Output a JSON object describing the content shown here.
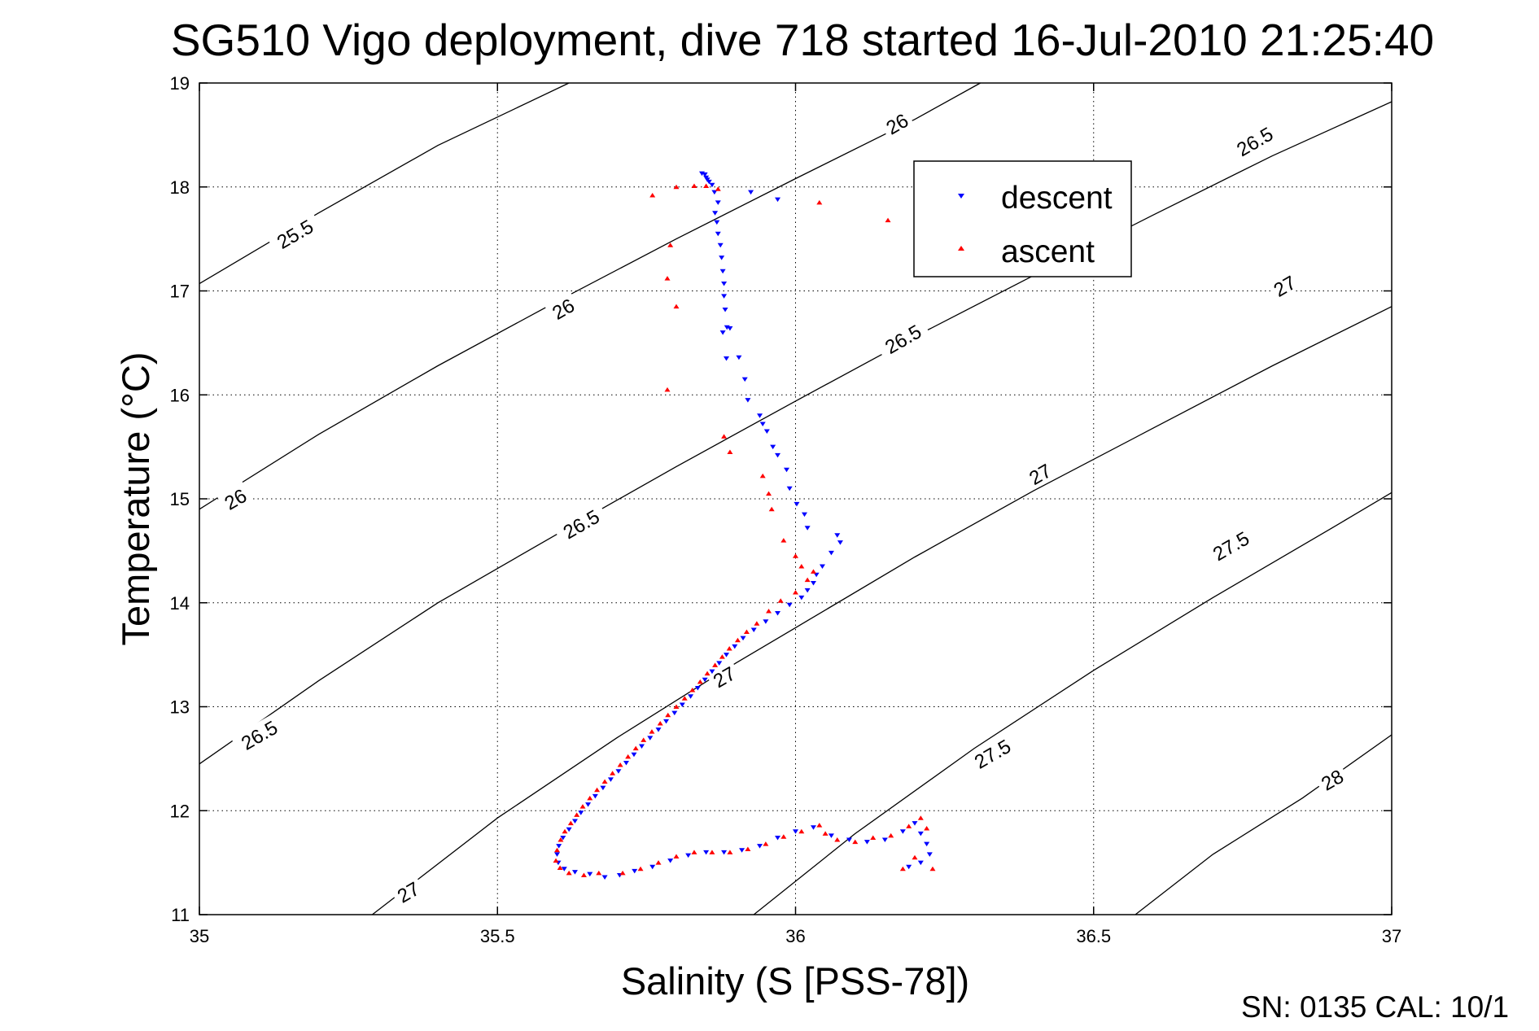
{
  "chart_data": {
    "type": "scatter",
    "title": "SG510 Vigo deployment, dive 718 started 16-Jul-2010 21:25:40",
    "xlabel": "Salinity (S [PSS-78])",
    "ylabel": "Temperature (°C)",
    "xlim": [
      35,
      37
    ],
    "ylim": [
      11,
      19
    ],
    "xticks": [
      "35",
      "35.5",
      "36",
      "36.5",
      "37"
    ],
    "yticks": [
      "11",
      "12",
      "13",
      "14",
      "15",
      "16",
      "17",
      "18",
      "19"
    ],
    "grid": true,
    "legend_position": "top-right",
    "footer": "SN: 0135  CAL: 10/1",
    "contour_labels": [
      {
        "text": "25.5",
        "s": 35.16,
        "t": 17.55
      },
      {
        "text": "26",
        "s": 35.61,
        "t": 16.83
      },
      {
        "text": "26",
        "s": 35.06,
        "t": 15.0
      },
      {
        "text": "26",
        "s": 36.17,
        "t": 18.61
      },
      {
        "text": "26.5",
        "s": 36.18,
        "t": 16.54
      },
      {
        "text": "26.5",
        "s": 35.64,
        "t": 14.76
      },
      {
        "text": "26.5",
        "s": 35.1,
        "t": 12.73
      },
      {
        "text": "26.5",
        "s": 36.77,
        "t": 18.44
      },
      {
        "text": "27",
        "s": 36.82,
        "t": 17.05
      },
      {
        "text": "27",
        "s": 36.41,
        "t": 15.24
      },
      {
        "text": "27",
        "s": 35.88,
        "t": 13.29
      },
      {
        "text": "27",
        "s": 35.35,
        "t": 11.22
      },
      {
        "text": "27.5",
        "s": 36.73,
        "t": 14.55
      },
      {
        "text": "27.5",
        "s": 36.33,
        "t": 12.55
      },
      {
        "text": "28",
        "s": 36.9,
        "t": 12.3
      }
    ],
    "isopycnals": [
      {
        "sigma": 25.5,
        "points": [
          [
            35.0,
            17.07
          ],
          [
            35.2,
            17.75
          ],
          [
            35.4,
            18.4
          ],
          [
            35.62,
            19.0
          ]
        ]
      },
      {
        "sigma": 26.0,
        "points": [
          [
            35.0,
            14.9
          ],
          [
            35.2,
            15.62
          ],
          [
            35.4,
            16.28
          ],
          [
            35.6,
            16.9
          ],
          [
            35.8,
            17.5
          ],
          [
            36.0,
            18.08
          ],
          [
            36.2,
            18.65
          ],
          [
            36.31,
            19.0
          ]
        ]
      },
      {
        "sigma": 26.5,
        "points": [
          [
            35.0,
            12.45
          ],
          [
            35.2,
            13.25
          ],
          [
            35.4,
            14.0
          ],
          [
            35.6,
            14.66
          ],
          [
            35.8,
            15.31
          ],
          [
            36.0,
            15.94
          ],
          [
            36.2,
            16.56
          ],
          [
            36.4,
            17.15
          ],
          [
            36.6,
            17.73
          ],
          [
            36.8,
            18.3
          ],
          [
            37.0,
            18.82
          ]
        ]
      },
      {
        "sigma": 27.0,
        "points": [
          [
            35.29,
            11.0
          ],
          [
            35.5,
            11.93
          ],
          [
            35.7,
            12.7
          ],
          [
            35.9,
            13.42
          ],
          [
            36.0,
            13.76
          ],
          [
            36.2,
            14.44
          ],
          [
            36.4,
            15.08
          ],
          [
            36.6,
            15.68
          ],
          [
            36.8,
            16.28
          ],
          [
            37.0,
            16.85
          ]
        ]
      },
      {
        "sigma": 27.5,
        "points": [
          [
            35.93,
            11.0
          ],
          [
            36.1,
            11.78
          ],
          [
            36.3,
            12.6
          ],
          [
            36.5,
            13.35
          ],
          [
            36.7,
            14.05
          ],
          [
            36.9,
            14.72
          ],
          [
            37.0,
            15.06
          ]
        ]
      },
      {
        "sigma": 28.0,
        "points": [
          [
            36.57,
            11.0
          ],
          [
            36.7,
            11.58
          ],
          [
            36.85,
            12.12
          ],
          [
            37.0,
            12.73
          ]
        ]
      }
    ],
    "series": [
      {
        "name": "descent",
        "color": "#0000ff",
        "marker": "triangle-down",
        "points": [
          [
            35.843,
            18.13
          ],
          [
            35.848,
            18.12
          ],
          [
            35.85,
            18.09
          ],
          [
            35.852,
            18.07
          ],
          [
            35.855,
            18.05
          ],
          [
            35.86,
            18.02
          ],
          [
            35.864,
            17.95
          ],
          [
            35.87,
            17.85
          ],
          [
            35.865,
            17.75
          ],
          [
            35.868,
            17.66
          ],
          [
            35.87,
            17.55
          ],
          [
            35.874,
            17.44
          ],
          [
            35.876,
            17.32
          ],
          [
            35.878,
            17.19
          ],
          [
            35.88,
            17.07
          ],
          [
            35.88,
            16.95
          ],
          [
            35.882,
            16.82
          ],
          [
            35.885,
            16.65
          ],
          [
            35.89,
            16.64
          ],
          [
            35.878,
            16.6
          ],
          [
            35.884,
            16.35
          ],
          [
            35.905,
            16.36
          ],
          [
            35.915,
            16.15
          ],
          [
            35.92,
            15.95
          ],
          [
            35.94,
            15.8
          ],
          [
            35.945,
            15.72
          ],
          [
            35.952,
            15.65
          ],
          [
            35.962,
            15.5
          ],
          [
            35.97,
            15.42
          ],
          [
            35.985,
            15.28
          ],
          [
            35.99,
            15.1
          ],
          [
            36.002,
            14.95
          ],
          [
            36.015,
            14.85
          ],
          [
            36.02,
            14.72
          ],
          [
            36.07,
            14.65
          ],
          [
            36.075,
            14.58
          ],
          [
            36.06,
            14.48
          ],
          [
            36.045,
            14.35
          ],
          [
            36.035,
            14.27
          ],
          [
            36.03,
            14.19
          ],
          [
            36.02,
            14.12
          ],
          [
            36.01,
            14.05
          ],
          [
            35.99,
            13.98
          ],
          [
            35.97,
            13.9
          ],
          [
            35.95,
            13.82
          ],
          [
            35.93,
            13.74
          ],
          [
            35.912,
            13.66
          ],
          [
            35.898,
            13.58
          ],
          [
            35.884,
            13.5
          ],
          [
            35.872,
            13.42
          ],
          [
            35.86,
            13.34
          ],
          [
            35.848,
            13.26
          ],
          [
            35.836,
            13.18
          ],
          [
            35.824,
            13.1
          ],
          [
            35.81,
            13.02
          ],
          [
            35.797,
            12.94
          ],
          [
            35.783,
            12.86
          ],
          [
            35.77,
            12.78
          ],
          [
            35.756,
            12.7
          ],
          [
            35.742,
            12.62
          ],
          [
            35.729,
            12.54
          ],
          [
            35.716,
            12.46
          ],
          [
            35.703,
            12.38
          ],
          [
            35.69,
            12.3
          ],
          [
            35.677,
            12.22
          ],
          [
            35.664,
            12.14
          ],
          [
            35.652,
            12.06
          ],
          [
            35.64,
            11.98
          ],
          [
            35.63,
            11.9
          ],
          [
            35.62,
            11.82
          ],
          [
            35.61,
            11.74
          ],
          [
            35.603,
            11.66
          ],
          [
            35.6,
            11.58
          ],
          [
            35.602,
            11.5
          ],
          [
            35.612,
            11.44
          ],
          [
            35.63,
            11.41
          ],
          [
            35.655,
            11.39
          ],
          [
            35.68,
            11.36
          ],
          [
            35.705,
            11.38
          ],
          [
            35.73,
            11.42
          ],
          [
            35.76,
            11.46
          ],
          [
            35.79,
            11.52
          ],
          [
            35.82,
            11.57
          ],
          [
            35.85,
            11.6
          ],
          [
            35.88,
            11.6
          ],
          [
            35.91,
            11.62
          ],
          [
            35.94,
            11.66
          ],
          [
            35.97,
            11.74
          ],
          [
            36.0,
            11.8
          ],
          [
            36.03,
            11.84
          ],
          [
            36.06,
            11.76
          ],
          [
            36.09,
            11.72
          ],
          [
            36.12,
            11.7
          ],
          [
            36.15,
            11.72
          ],
          [
            36.18,
            11.8
          ],
          [
            36.2,
            11.88
          ],
          [
            36.21,
            11.78
          ],
          [
            36.22,
            11.68
          ],
          [
            36.225,
            11.58
          ],
          [
            36.21,
            11.5
          ],
          [
            36.19,
            11.46
          ],
          [
            35.925,
            17.95
          ],
          [
            35.97,
            17.88
          ]
        ]
      },
      {
        "name": "ascent",
        "color": "#ff0000",
        "marker": "triangle-up",
        "points": [
          [
            35.76,
            17.92
          ],
          [
            35.8,
            18.0
          ],
          [
            35.83,
            18.01
          ],
          [
            35.85,
            18.01
          ],
          [
            35.87,
            17.98
          ],
          [
            35.79,
            17.44
          ],
          [
            35.785,
            17.12
          ],
          [
            35.8,
            16.85
          ],
          [
            35.785,
            16.05
          ],
          [
            35.88,
            15.6
          ],
          [
            35.89,
            15.45
          ],
          [
            35.945,
            15.22
          ],
          [
            35.955,
            15.05
          ],
          [
            35.96,
            14.9
          ],
          [
            35.98,
            14.6
          ],
          [
            36.0,
            14.45
          ],
          [
            36.01,
            14.35
          ],
          [
            36.03,
            14.3
          ],
          [
            36.02,
            14.22
          ],
          [
            36.0,
            14.1
          ],
          [
            35.975,
            14.02
          ],
          [
            35.955,
            13.92
          ],
          [
            35.935,
            13.8
          ],
          [
            35.918,
            13.72
          ],
          [
            35.903,
            13.64
          ],
          [
            35.889,
            13.56
          ],
          [
            35.877,
            13.48
          ],
          [
            35.865,
            13.4
          ],
          [
            35.852,
            13.32
          ],
          [
            35.84,
            13.24
          ],
          [
            35.827,
            13.16
          ],
          [
            35.814,
            13.08
          ],
          [
            35.8,
            13.0
          ],
          [
            35.786,
            12.92
          ],
          [
            35.773,
            12.84
          ],
          [
            35.759,
            12.76
          ],
          [
            35.745,
            12.68
          ],
          [
            35.732,
            12.6
          ],
          [
            35.719,
            12.52
          ],
          [
            35.706,
            12.44
          ],
          [
            35.693,
            12.36
          ],
          [
            35.68,
            12.28
          ],
          [
            35.667,
            12.2
          ],
          [
            35.655,
            12.12
          ],
          [
            35.643,
            12.04
          ],
          [
            35.633,
            11.96
          ],
          [
            35.623,
            11.88
          ],
          [
            35.613,
            11.8
          ],
          [
            35.606,
            11.72
          ],
          [
            35.6,
            11.62
          ],
          [
            35.598,
            11.52
          ],
          [
            35.605,
            11.45
          ],
          [
            35.62,
            11.4
          ],
          [
            35.645,
            11.38
          ],
          [
            35.67,
            11.4
          ],
          [
            35.71,
            11.4
          ],
          [
            35.74,
            11.44
          ],
          [
            35.77,
            11.5
          ],
          [
            35.8,
            11.56
          ],
          [
            35.83,
            11.6
          ],
          [
            35.86,
            11.6
          ],
          [
            35.89,
            11.6
          ],
          [
            35.92,
            11.63
          ],
          [
            35.95,
            11.68
          ],
          [
            35.98,
            11.75
          ],
          [
            36.01,
            11.8
          ],
          [
            36.04,
            11.86
          ],
          [
            36.05,
            11.78
          ],
          [
            36.07,
            11.72
          ],
          [
            36.1,
            11.7
          ],
          [
            36.13,
            11.74
          ],
          [
            36.16,
            11.76
          ],
          [
            36.19,
            11.85
          ],
          [
            36.21,
            11.93
          ],
          [
            36.22,
            11.83
          ],
          [
            36.2,
            11.55
          ],
          [
            36.18,
            11.44
          ],
          [
            36.23,
            11.44
          ],
          [
            36.04,
            17.85
          ],
          [
            36.155,
            17.68
          ]
        ]
      }
    ]
  }
}
